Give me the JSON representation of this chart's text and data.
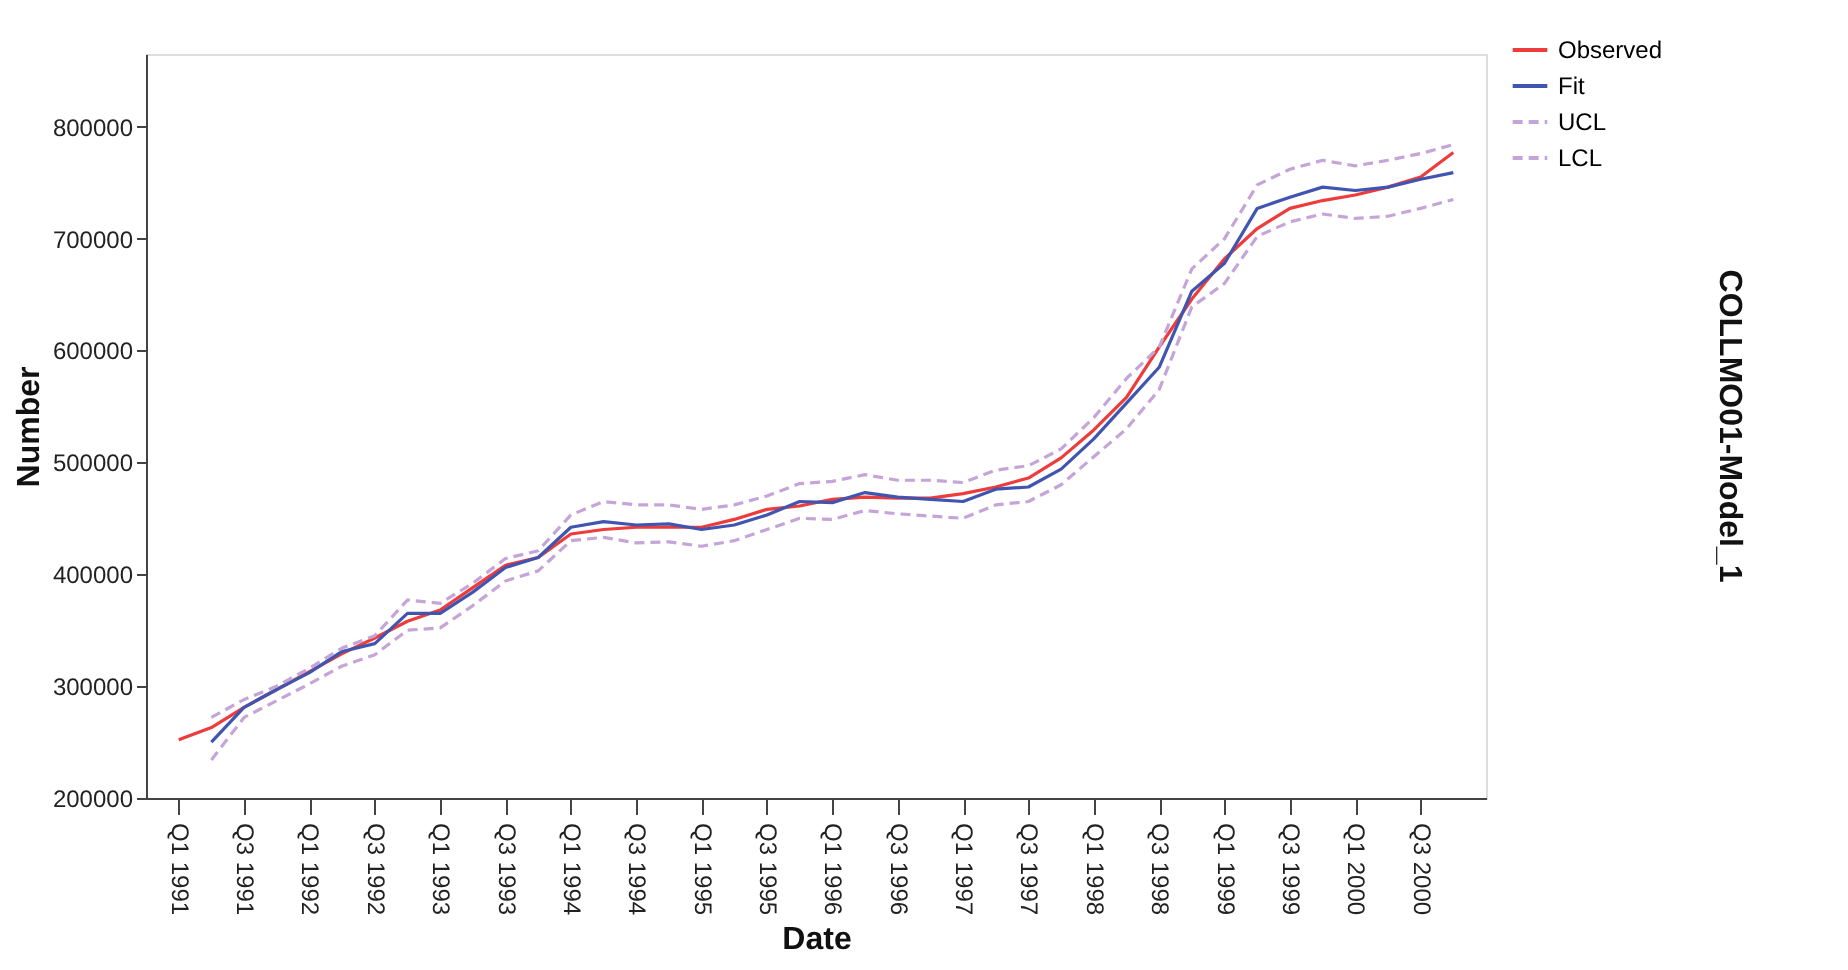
{
  "chart_data": {
    "type": "line",
    "title": "COLLMO01-Model_1",
    "xlabel": "Date",
    "ylabel": "Number",
    "categories": [
      "Q1 1991",
      null,
      "Q3 1991",
      null,
      "Q1 1992",
      null,
      "Q3 1992",
      null,
      "Q1 1993",
      null,
      "Q3 1993",
      null,
      "Q1 1994",
      null,
      "Q3 1994",
      null,
      "Q1 1995",
      null,
      "Q3 1995",
      null,
      "Q1 1996",
      null,
      "Q3 1996",
      null,
      "Q1 1997",
      null,
      "Q3 1997",
      null,
      "Q1 1998",
      null,
      "Q3 1998",
      null,
      "Q1 1999",
      null,
      "Q3 1999",
      null,
      "Q1 2000",
      null,
      "Q3 2000",
      null
    ],
    "ylim": [
      200000,
      865000
    ],
    "yticks": [
      200000,
      300000,
      400000,
      500000,
      600000,
      700000,
      800000
    ],
    "legend": "top right",
    "grid": false,
    "series": [
      {
        "name": "Observed",
        "color": "#ee3b3b",
        "line_style": "solid",
        "values": [
          252000,
          263000,
          281000,
          297000,
          313000,
          329000,
          343000,
          358000,
          368000,
          388000,
          408000,
          415000,
          436000,
          440000,
          442000,
          442000,
          442000,
          449000,
          458000,
          461000,
          467000,
          469000,
          468000,
          468000,
          472000,
          478000,
          486000,
          504000,
          529000,
          558000,
          603000,
          646000,
          682000,
          709000,
          727000,
          734000,
          739000,
          746000,
          755000,
          777000
        ]
      },
      {
        "name": "Fit",
        "color": "#4055b0",
        "line_style": "solid",
        "values": [
          null,
          250000,
          281000,
          297000,
          312000,
          331000,
          338000,
          365000,
          365000,
          384000,
          406000,
          415000,
          442000,
          447000,
          444000,
          445000,
          440000,
          444000,
          453000,
          465000,
          464000,
          473000,
          469000,
          467000,
          465000,
          476000,
          478000,
          494000,
          521000,
          553000,
          585000,
          653000,
          678000,
          727000,
          737000,
          746000,
          743000,
          746000,
          753000,
          759000
        ]
      },
      {
        "name": "UCL",
        "color": "#c5a5d8",
        "line_style": "dashed",
        "values": [
          null,
          272000,
          288000,
          300000,
          316000,
          334000,
          345000,
          377000,
          374000,
          392000,
          414000,
          421000,
          453000,
          465000,
          462000,
          462000,
          458000,
          462000,
          470000,
          481000,
          483000,
          489000,
          484000,
          484000,
          482000,
          493000,
          497000,
          512000,
          540000,
          575000,
          603000,
          673000,
          700000,
          748000,
          762000,
          770000,
          765000,
          770000,
          776000,
          784000
        ]
      },
      {
        "name": "LCL",
        "color": "#c5a5d8",
        "line_style": "dashed",
        "values": [
          null,
          234000,
          272000,
          287000,
          302000,
          318000,
          328000,
          350000,
          352000,
          372000,
          394000,
          403000,
          430000,
          433000,
          428000,
          429000,
          425000,
          430000,
          440000,
          450000,
          449000,
          457000,
          454000,
          452000,
          450000,
          462000,
          465000,
          480000,
          505000,
          530000,
          565000,
          639000,
          660000,
          702000,
          715000,
          722000,
          718000,
          720000,
          727000,
          735000
        ]
      }
    ]
  }
}
